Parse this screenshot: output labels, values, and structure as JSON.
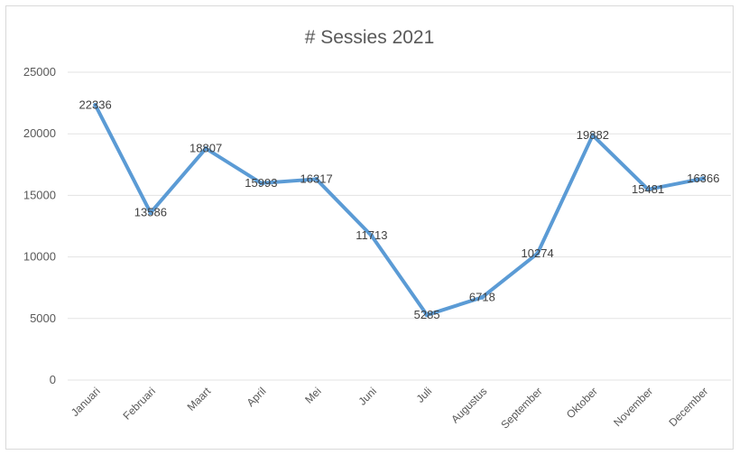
{
  "chart_data": {
    "type": "line",
    "title": "# Sessies 2021",
    "xlabel": "",
    "ylabel": "",
    "categories": [
      "Januari",
      "Februari",
      "Maart",
      "April",
      "Mei",
      "Juni",
      "Juli",
      "Augustus",
      "September",
      "Oktober",
      "November",
      "December"
    ],
    "series": [
      {
        "values": [
          22336,
          13586,
          18807,
          15993,
          16317,
          11713,
          5285,
          6718,
          10274,
          19882,
          15481,
          16366
        ]
      }
    ],
    "yticks": [
      0,
      5000,
      10000,
      15000,
      20000,
      25000
    ],
    "ylim": [
      0,
      25000
    ],
    "grid": true,
    "legend": "none",
    "line_color": "#5b9bd5"
  }
}
